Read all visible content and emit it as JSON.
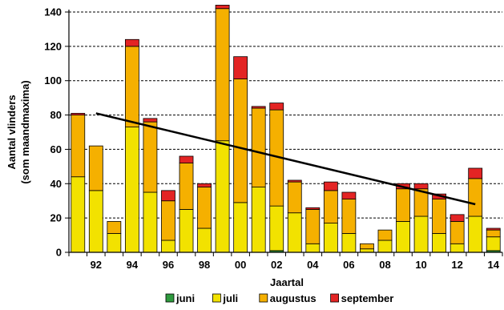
{
  "chart_data": {
    "type": "bar",
    "stacked": true,
    "categories": [
      "91",
      "92",
      "93",
      "94",
      "95",
      "96",
      "97",
      "98",
      "99",
      "00",
      "01",
      "02",
      "03",
      "04",
      "05",
      "06",
      "07",
      "08",
      "09",
      "10",
      "11",
      "12",
      "13",
      "14"
    ],
    "tick_labels": [
      "92",
      "94",
      "96",
      "98",
      "00",
      "02",
      "04",
      "06",
      "08",
      "10",
      "12",
      "14"
    ],
    "series": [
      {
        "name": "juni",
        "color": "#2e9a3e",
        "values": [
          0,
          0,
          0,
          0,
          0,
          0,
          0,
          0,
          0,
          0,
          0,
          1,
          0,
          0,
          0,
          0,
          0,
          0,
          0,
          0,
          0,
          0,
          0,
          1
        ]
      },
      {
        "name": "juli",
        "color": "#f2e200",
        "values": [
          44,
          36,
          11,
          73,
          35,
          7,
          25,
          14,
          65,
          29,
          38,
          26,
          23,
          5,
          17,
          11,
          2,
          7,
          18,
          21,
          11,
          5,
          21,
          8
        ]
      },
      {
        "name": "augustus",
        "color": "#f5b000",
        "values": [
          36,
          26,
          7,
          47,
          41,
          23,
          27,
          24,
          77,
          72,
          46,
          56,
          18,
          20,
          19,
          20,
          3,
          6,
          19,
          16,
          20,
          13,
          22,
          4
        ]
      },
      {
        "name": "september",
        "color": "#e32424",
        "values": [
          1,
          0,
          0,
          4,
          2,
          6,
          4,
          2,
          2,
          13,
          1,
          4,
          1,
          1,
          5,
          4,
          0,
          0,
          3,
          3,
          3,
          4,
          6,
          1
        ]
      }
    ],
    "trendline": {
      "color": "#000000",
      "from": {
        "x": "92",
        "y": 81
      },
      "to": {
        "x": "13",
        "y": 28
      }
    },
    "ylim": [
      0,
      140
    ],
    "yticks": [
      0,
      20,
      40,
      60,
      80,
      100,
      120,
      140
    ],
    "xlabel": "Jaartal",
    "ylabel_line1": "Aantal vlinders",
    "ylabel_line2": "(som maandmaxima)",
    "grid": true,
    "legend_position": "bottom"
  }
}
